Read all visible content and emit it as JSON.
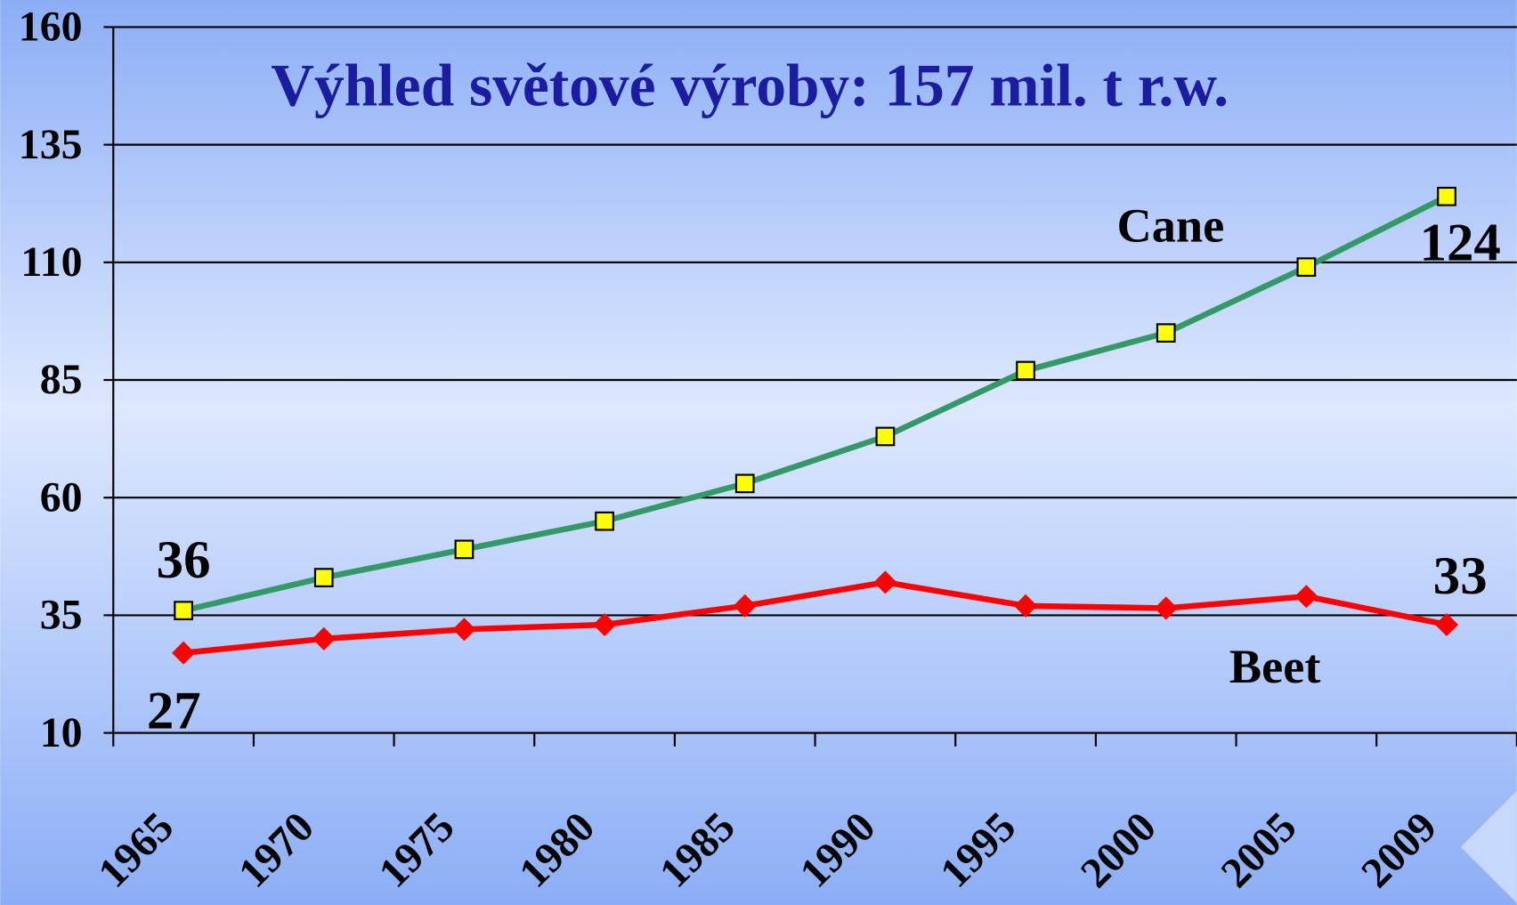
{
  "chart_data": {
    "type": "line",
    "title": "Výhled světové výroby: 157 mil. t r.w.",
    "categories": [
      "1965",
      "1970",
      "1975",
      "1980",
      "1985",
      "1990",
      "1995",
      "2000",
      "2005",
      "2009"
    ],
    "series": [
      {
        "name": "Cane",
        "color": "#339966",
        "marker_color": "#ffff00",
        "marker": "square",
        "values": [
          36,
          43,
          49,
          55,
          63,
          73,
          87,
          95,
          109,
          124
        ],
        "value_labels": [
          "36",
          null,
          null,
          null,
          null,
          null,
          null,
          null,
          null,
          "124"
        ]
      },
      {
        "name": "Beet",
        "color": "#ff0000",
        "marker_color": "#ff0000",
        "marker": "diamond",
        "values": [
          27,
          30,
          32,
          33,
          37,
          42,
          37,
          36.5,
          39,
          33
        ],
        "value_labels": [
          "27",
          null,
          null,
          null,
          null,
          null,
          null,
          null,
          null,
          "33"
        ]
      }
    ],
    "ylim": [
      10,
      160
    ],
    "yticks": [
      10,
      35,
      60,
      85,
      110,
      135,
      160
    ],
    "grid": true
  }
}
